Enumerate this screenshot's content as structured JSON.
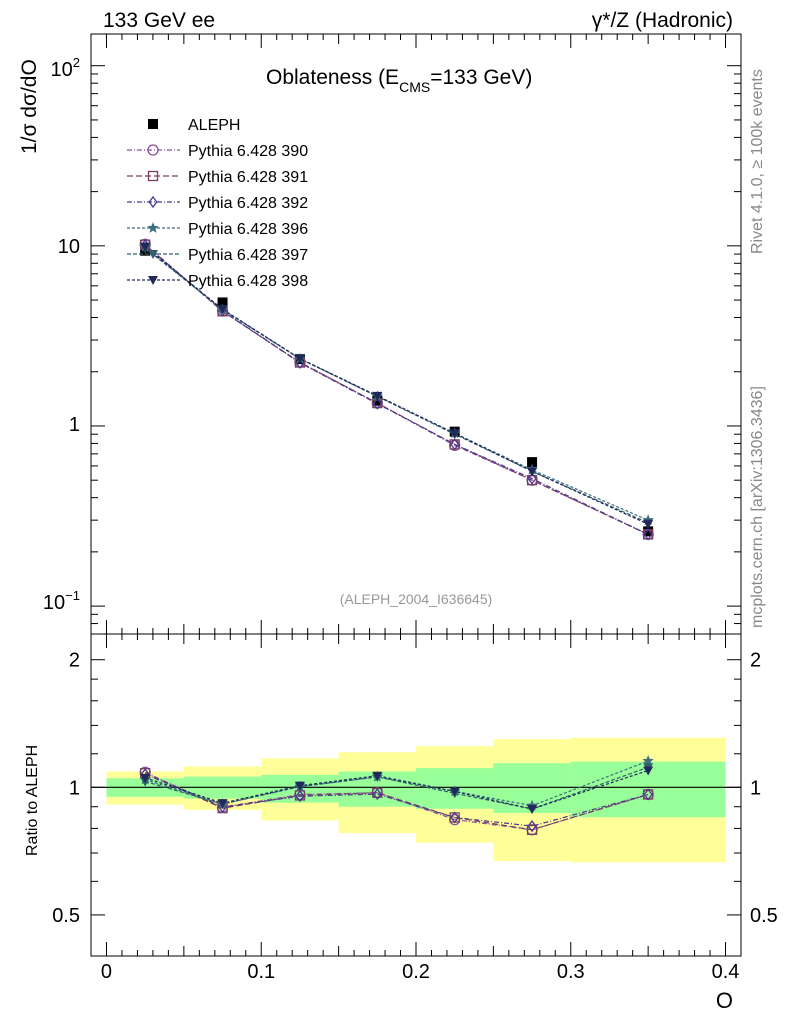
{
  "header": {
    "left_label": "133 GeV ee",
    "right_label": "γ*/Z (Hadronic)"
  },
  "side_labels": {
    "rivet": "Rivet 4.1.0, ≥ 100k events",
    "site": "mcplots.cern.ch [arXiv:1306.3436]"
  },
  "colors": {
    "band_inner": "#99ff99",
    "band_outer": "#ffff99",
    "data": "#000000"
  },
  "chart_data": [
    {
      "type": "scatter",
      "panel": "main",
      "title_main": "Oblateness (E",
      "title_sub": "CMS",
      "title_tail": "=133 GeV)",
      "ylabel": "1/σ  dσ/dO",
      "yscale": "log",
      "ylim": [
        0.07,
        150
      ],
      "xlim": [
        -0.01,
        0.41
      ],
      "ytick_labels": [
        "10",
        "1"
      ],
      "ytick_mant": "10",
      "ytick_exp_top": "2",
      "ytick_exp_bottom": "−1",
      "analysis_id": "(ALEPH_2004_I636645)",
      "x": [
        0.025,
        0.075,
        0.125,
        0.175,
        0.225,
        0.275,
        0.35
      ],
      "bins": [
        [
          0.0,
          0.05
        ],
        [
          0.05,
          0.1
        ],
        [
          0.1,
          0.15
        ],
        [
          0.15,
          0.2
        ],
        [
          0.2,
          0.25
        ],
        [
          0.25,
          0.3
        ],
        [
          0.3,
          0.4
        ]
      ],
      "series": [
        {
          "name": "ALEPH",
          "color": "#000000",
          "marker": "square-filled",
          "dash": "",
          "values": [
            9.4,
            4.85,
            2.35,
            1.38,
            0.93,
            0.63,
            0.26
          ]
        },
        {
          "name": "Pythia 6.428 390",
          "color": "#8a4f9e",
          "marker": "circle-open",
          "dash": "5,2,1,2",
          "values": [
            10.2,
            4.35,
            2.26,
            1.34,
            0.78,
            0.5,
            0.25
          ]
        },
        {
          "name": "Pythia 6.428 391",
          "color": "#7a3f5f",
          "marker": "square-open",
          "dash": "6,3",
          "values": [
            10.15,
            4.33,
            2.25,
            1.34,
            0.79,
            0.5,
            0.25
          ]
        },
        {
          "name": "Pythia 6.428 392",
          "color": "#4a3a8f",
          "marker": "diamond-open",
          "dash": "5,2,1,2",
          "values": [
            10.1,
            4.36,
            2.24,
            1.33,
            0.79,
            0.51,
            0.25
          ]
        },
        {
          "name": "Pythia 6.428 396",
          "color": "#3f6f7f",
          "marker": "star",
          "dash": "3,2",
          "values": [
            9.8,
            4.43,
            2.36,
            1.46,
            0.91,
            0.57,
            0.3
          ]
        },
        {
          "name": "Pythia 6.428 397",
          "color": "#2f5f6f",
          "marker": "triangle-down",
          "dash": "4,2",
          "values": [
            9.7,
            4.43,
            2.36,
            1.46,
            0.9,
            0.56,
            0.29
          ]
        },
        {
          "name": "Pythia 6.428 398",
          "color": "#202a5a",
          "marker": "triangle-down",
          "dash": "3,2",
          "values": [
            9.9,
            4.45,
            2.37,
            1.47,
            0.91,
            0.56,
            0.285
          ]
        }
      ]
    },
    {
      "type": "line",
      "panel": "ratio",
      "ylabel": "Ratio to ALEPH",
      "xlabel": "O",
      "ylim": [
        0.4,
        2.3
      ],
      "xlim": [
        -0.01,
        0.41
      ],
      "ytick_labels": [
        "2",
        "1",
        "0.5"
      ],
      "xtick_labels": [
        "0",
        "0.1",
        "0.2",
        "0.3",
        "0.4"
      ],
      "band_inner": [
        [
          0.95,
          1.05
        ],
        [
          0.94,
          1.06
        ],
        [
          0.92,
          1.07
        ],
        [
          0.9,
          1.09
        ],
        [
          0.89,
          1.11
        ],
        [
          0.87,
          1.14
        ],
        [
          0.85,
          1.15
        ]
      ],
      "band_outer": [
        [
          0.91,
          1.09
        ],
        [
          0.885,
          1.12
        ],
        [
          0.835,
          1.17
        ],
        [
          0.78,
          1.21
        ],
        [
          0.74,
          1.25
        ],
        [
          0.67,
          1.3
        ],
        [
          0.665,
          1.31
        ]
      ],
      "series": [
        {
          "name": "Pythia 6.428 390",
          "values": [
            1.085,
            0.897,
            0.962,
            0.971,
            0.839,
            0.794,
            0.962
          ]
        },
        {
          "name": "Pythia 6.428 391",
          "values": [
            1.08,
            0.893,
            0.957,
            0.971,
            0.849,
            0.794,
            0.962
          ]
        },
        {
          "name": "Pythia 6.428 392",
          "values": [
            1.074,
            0.899,
            0.953,
            0.964,
            0.849,
            0.81,
            0.962
          ]
        },
        {
          "name": "Pythia 6.428 396",
          "values": [
            1.043,
            0.913,
            1.004,
            1.058,
            0.978,
            0.905,
            1.154
          ]
        },
        {
          "name": "Pythia 6.428 397",
          "values": [
            1.032,
            0.913,
            1.004,
            1.058,
            0.968,
            0.889,
            1.115
          ]
        },
        {
          "name": "Pythia 6.428 398",
          "values": [
            1.053,
            0.918,
            1.009,
            1.065,
            0.978,
            0.889,
            1.096
          ]
        }
      ]
    }
  ]
}
